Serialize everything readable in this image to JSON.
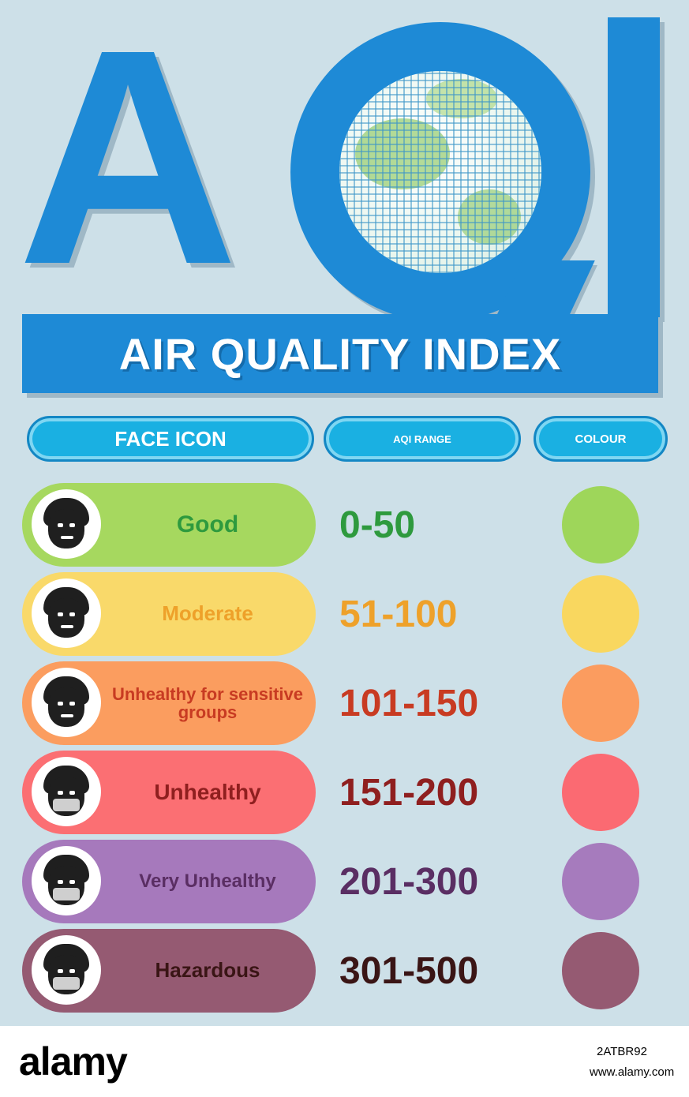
{
  "title": {
    "abbreviation_a": "A",
    "abbreviation_q": "Q",
    "abbreviation_i": "I",
    "full": "AIR QUALITY INDEX"
  },
  "headers": {
    "face_icon": "FACE ICON",
    "range": "AQI RANGE",
    "colour": "COLOUR"
  },
  "levels": [
    {
      "label": "Good",
      "range": "0-50",
      "pill_color": "#a6d85f",
      "text_color": "#2e9a3e",
      "range_color": "#2e9a3e",
      "dot_color": "#9ed65a",
      "icon": "face-neutral-icon"
    },
    {
      "label": "Moderate",
      "range": "51-100",
      "pill_color": "#f9d96a",
      "text_color": "#eea12a",
      "range_color": "#eea12a",
      "dot_color": "#f9d75f",
      "icon": "face-slight-concern-icon"
    },
    {
      "label": "Unhealthy for sensitive groups",
      "range": "101-150",
      "pill_color": "#fb9d5f",
      "text_color": "#c83b22",
      "range_color": "#c83b22",
      "dot_color": "#fb9c5f",
      "icon": "face-worried-icon"
    },
    {
      "label": "Unhealthy",
      "range": "151-200",
      "pill_color": "#fb6f73",
      "text_color": "#8f1f1f",
      "range_color": "#8f1f1f",
      "dot_color": "#fb6a72",
      "icon": "face-mask-icon"
    },
    {
      "label": "Very Unhealthy",
      "range": "201-300",
      "pill_color": "#a679bc",
      "text_color": "#5a2e63",
      "range_color": "#5a2e63",
      "dot_color": "#a67bbd",
      "icon": "face-mask-sick-icon"
    },
    {
      "label": "Hazardous",
      "range": "301-500",
      "pill_color": "#955a72",
      "text_color": "#3a1515",
      "range_color": "#3a1515",
      "dot_color": "#955a72",
      "icon": "face-hazard-icon"
    }
  ],
  "footer": {
    "logo": "alamy",
    "image_id": "2ATBR92",
    "url": "www.alamy.com"
  }
}
